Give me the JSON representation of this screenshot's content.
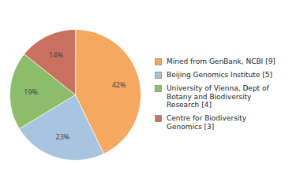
{
  "chart_data": {
    "type": "pie",
    "categories": [
      "Mined from GenBank, NCBI [9]",
      "Beijing Genomics Institute [5]",
      "University of Vienna, Dept of\nBotany and Biodiversity\nResearch [4]",
      "Centre for Biodiversity\nGenomics [3]"
    ],
    "values": [
      42,
      23,
      19,
      14
    ],
    "value_labels": [
      "42%",
      "23%",
      "19%",
      "14%"
    ],
    "colors": [
      "#F4A860",
      "#A8C4E0",
      "#8BBD6B",
      "#C97060"
    ],
    "data_labels": true,
    "legend": "right"
  }
}
